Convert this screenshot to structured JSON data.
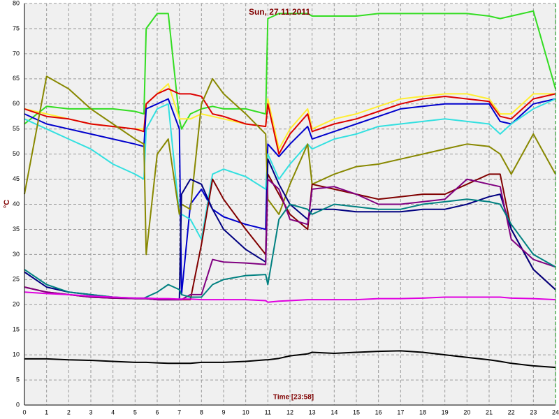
{
  "chart_data": {
    "type": "line",
    "title": "Sun, 27.11.2011",
    "xlabel": "Time [23:58]",
    "ylabel": "°C",
    "grid": true,
    "xlim": [
      0,
      24
    ],
    "xticks": [
      0,
      1,
      2,
      3,
      4,
      5,
      6,
      7,
      8,
      9,
      10,
      11,
      12,
      13,
      14,
      15,
      16,
      17,
      18,
      19,
      20,
      21,
      22,
      23,
      24
    ],
    "ylim": [
      0,
      80
    ],
    "yticks": [
      0,
      5,
      10,
      15,
      20,
      25,
      30,
      35,
      40,
      45,
      50,
      55,
      60,
      65,
      70,
      75,
      80
    ],
    "x": [
      0,
      1,
      2,
      3,
      4,
      5,
      5.4,
      5.5,
      6,
      6.5,
      7,
      7.1,
      7.5,
      8,
      8.5,
      9,
      10,
      10.9,
      11,
      11.5,
      12,
      12.8,
      13,
      14,
      15,
      16,
      17,
      18,
      19,
      20,
      21,
      21.5,
      22,
      23,
      24
    ],
    "series": [
      {
        "color": "#33dd22",
        "values": [
          56,
          59.5,
          59,
          59,
          59,
          58.5,
          58,
          75,
          78,
          78,
          57,
          55,
          58,
          59,
          59.5,
          59,
          59,
          58,
          77,
          78,
          78,
          78,
          77.5,
          77.5,
          77.5,
          78,
          78,
          78,
          78,
          78,
          77.5,
          77,
          77.5,
          78.5,
          63
        ]
      },
      {
        "color": "#ffee33",
        "values": [
          59,
          58,
          57,
          56,
          55.5,
          55,
          55,
          60,
          62,
          64,
          57,
          57,
          57,
          58,
          57.5,
          57,
          56,
          55.5,
          61,
          51,
          55,
          59,
          55,
          57,
          58,
          59.5,
          61,
          61.5,
          62,
          62,
          61,
          58,
          58,
          62,
          62
        ]
      },
      {
        "color": "#dd0000",
        "values": [
          59,
          57.5,
          57,
          56,
          55.5,
          55,
          54.5,
          60,
          62,
          63,
          62,
          62,
          62,
          61.5,
          58,
          57.5,
          56,
          55.5,
          60,
          50,
          54,
          58,
          54.5,
          56,
          57,
          58.5,
          60,
          61,
          61.5,
          61,
          60.5,
          57.5,
          57,
          61,
          62
        ]
      },
      {
        "color": "#0000cc",
        "values": [
          58,
          56,
          55,
          54,
          53,
          52,
          51.5,
          59,
          60,
          61,
          55,
          22,
          40,
          43,
          39,
          37.5,
          36,
          35,
          52,
          49.5,
          52,
          55.5,
          53,
          54.5,
          56,
          57.5,
          59,
          59.5,
          60,
          60,
          60,
          56.5,
          56,
          60,
          61
        ]
      },
      {
        "color": "#33e0e0",
        "values": [
          57,
          55,
          53,
          51,
          48,
          46,
          45,
          55,
          59,
          60,
          38,
          38,
          37,
          33,
          46,
          47,
          45.5,
          43,
          50,
          45,
          48,
          52,
          51,
          53,
          54,
          55.5,
          56,
          56.5,
          57,
          56.5,
          56,
          54,
          56,
          59,
          61
        ]
      },
      {
        "color": "#888800",
        "values": [
          42,
          65.5,
          63,
          59,
          56,
          53,
          52,
          30,
          50,
          53,
          38,
          40,
          39,
          60,
          65,
          62,
          58,
          54,
          41,
          38,
          44,
          52,
          44,
          46,
          47.5,
          48,
          49,
          50,
          51,
          52,
          51.5,
          50,
          46,
          54,
          46
        ]
      },
      {
        "color": "#800000",
        "values": [
          23.5,
          22.5,
          22,
          21.5,
          21.3,
          21.2,
          21.2,
          21.2,
          21,
          21,
          21,
          21,
          21,
          32,
          45,
          41,
          35,
          30,
          46,
          42,
          38,
          35,
          44,
          43,
          42,
          41,
          41.5,
          42,
          42,
          44,
          46,
          46,
          35,
          27,
          23
        ]
      },
      {
        "color": "#000080",
        "values": [
          26.5,
          23.5,
          22.5,
          22,
          21.5,
          21.2,
          21.2,
          21.2,
          21,
          21,
          21,
          42,
          45,
          44,
          39,
          35,
          31,
          28.5,
          49,
          44,
          40,
          37,
          39,
          39,
          38.5,
          38.5,
          38.5,
          39,
          39,
          40,
          41.5,
          42,
          35,
          27,
          23
        ]
      },
      {
        "color": "#800080",
        "values": [
          23.5,
          22.5,
          22,
          21.5,
          21.3,
          21.2,
          21.2,
          21.2,
          21,
          21,
          21,
          21,
          22,
          22,
          29,
          28.5,
          28.3,
          28,
          45,
          43,
          37,
          36,
          43,
          43.5,
          42,
          40,
          40,
          40.5,
          41,
          45,
          44,
          43.5,
          33,
          29,
          27.5
        ]
      },
      {
        "color": "#008080",
        "values": [
          27,
          24,
          22.5,
          22,
          21.5,
          21.3,
          21.3,
          21.5,
          22.5,
          24,
          23,
          22,
          21.5,
          21.5,
          24,
          25,
          25.8,
          26,
          24,
          37,
          40,
          39,
          38,
          40,
          39.5,
          39,
          39,
          40,
          40.5,
          41,
          40.5,
          40,
          36,
          30,
          27.5
        ]
      },
      {
        "color": "#e000e0",
        "values": [
          22.5,
          22.2,
          22,
          21.7,
          21.5,
          21.3,
          21.3,
          21.3,
          21.2,
          21.2,
          21.1,
          21.1,
          21.1,
          21,
          21,
          21,
          21,
          20.8,
          20.5,
          20.7,
          20.8,
          21,
          21,
          21,
          21,
          21.2,
          21.2,
          21.3,
          21.5,
          21.5,
          21.5,
          21.5,
          21.3,
          21.2,
          21
        ]
      },
      {
        "color": "#000000",
        "values": [
          9.2,
          9.2,
          9,
          8.9,
          8.7,
          8.5,
          8.5,
          8.5,
          8.4,
          8.3,
          8.3,
          8.3,
          8.3,
          8.5,
          8.5,
          8.5,
          8.7,
          9,
          9,
          9.3,
          9.8,
          10.2,
          10.5,
          10.3,
          10.5,
          10.7,
          10.8,
          10.5,
          10,
          9.5,
          9,
          8.7,
          8.3,
          7.8,
          7.5
        ]
      }
    ]
  }
}
